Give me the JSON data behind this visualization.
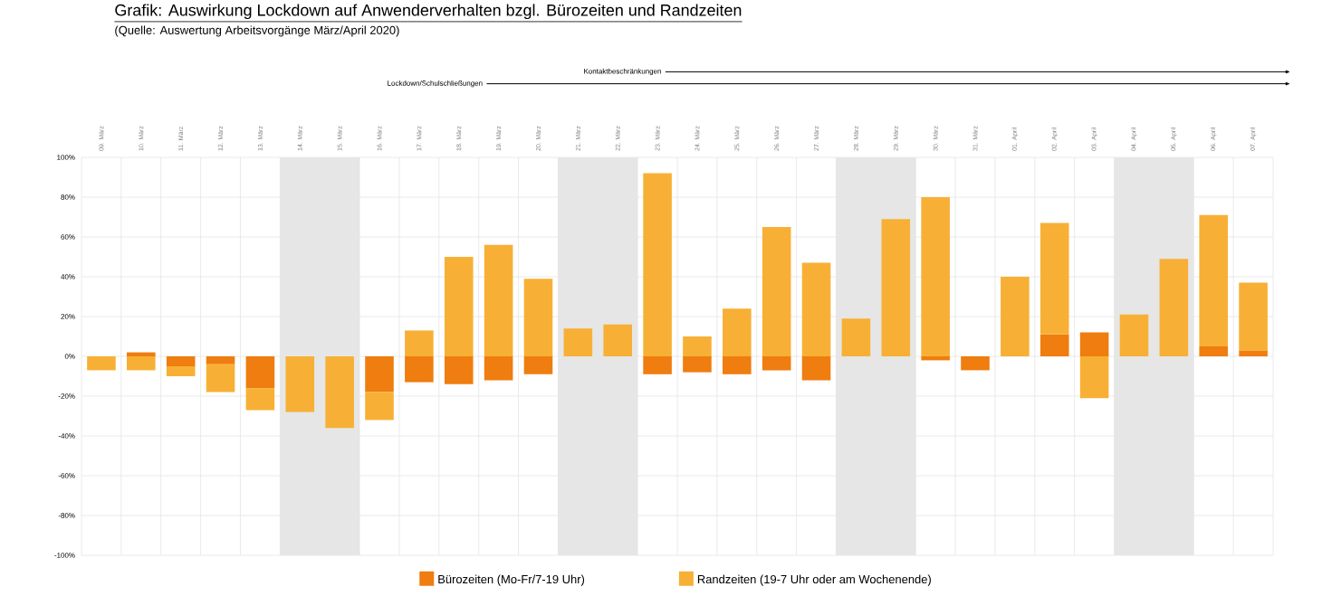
{
  "chart_data": {
    "type": "bar",
    "title": "Grafik: Auswirkung Lockdown auf Anwenderverhalten bzgl. Bürozeiten und Randzeiten",
    "subtitle": "(Quelle: Auswertung Arbeitsvorgänge März/April 2020)",
    "categories": [
      "09. März",
      "10. März",
      "11. März",
      "12. März",
      "13. März",
      "14. März",
      "15. März",
      "16. März",
      "17. März",
      "18. März",
      "19. März",
      "20. März",
      "21. März",
      "22. März",
      "23. März",
      "24. März",
      "25. März",
      "26. März",
      "27. März",
      "28. März",
      "29. März",
      "30. März",
      "31. März",
      "01. April",
      "02. April",
      "03. April",
      "04. April",
      "05. April",
      "06. April",
      "07. April"
    ],
    "stacked": true,
    "series": [
      {
        "name": "Bürozeiten (Mo-Fr/7-19 Uhr)",
        "color": "#ef7d0f",
        "values": [
          null,
          2,
          -5,
          -4,
          -16,
          null,
          null,
          -18,
          -13,
          -14,
          -12,
          -9,
          null,
          null,
          -9,
          -8,
          -9,
          -7,
          -12,
          null,
          null,
          -2,
          -7,
          null,
          11,
          12,
          null,
          null,
          5,
          3
        ]
      },
      {
        "name": "Randzeiten (19-7 Uhr oder am Wochenende)",
        "color": "#f7b035",
        "values": [
          -7,
          -7,
          -5,
          -14,
          -11,
          -28,
          -36,
          -14,
          13,
          50,
          56,
          39,
          14,
          16,
          92,
          10,
          24,
          65,
          47,
          19,
          69,
          80,
          null,
          40,
          56,
          -21,
          21,
          49,
          66,
          34
        ]
      }
    ],
    "ylim": [
      -100,
      100
    ],
    "yticks": [
      {
        "value": -100,
        "label": "-100%"
      },
      {
        "value": -80,
        "label": "-80%"
      },
      {
        "value": -60,
        "label": "-60%"
      },
      {
        "value": -40,
        "label": "-40%"
      },
      {
        "value": -20,
        "label": "-20%"
      },
      {
        "value": 0,
        "label": "0%"
      },
      {
        "value": 20,
        "label": "20%"
      },
      {
        "value": 40,
        "label": "40%"
      },
      {
        "value": 60,
        "label": "60%"
      },
      {
        "value": 80,
        "label": "80%"
      },
      {
        "value": 100,
        "label": "100%"
      }
    ],
    "bands": [
      {
        "axis": "x",
        "from": "14. März",
        "to": "15. März",
        "color": "#e6e6e6"
      },
      {
        "axis": "x",
        "from": "21. März",
        "to": "22. März",
        "color": "#e6e6e6"
      },
      {
        "axis": "x",
        "from": "28. März",
        "to": "29. März",
        "color": "#e6e6e6"
      },
      {
        "axis": "x",
        "from": "04. April",
        "to": "05. April",
        "color": "#e6e6e6"
      }
    ],
    "annotations": [
      "Lockdown/Schulschließungen",
      "Kontaktbeschränkungen"
    ],
    "grid": true,
    "legend": "bottom"
  }
}
